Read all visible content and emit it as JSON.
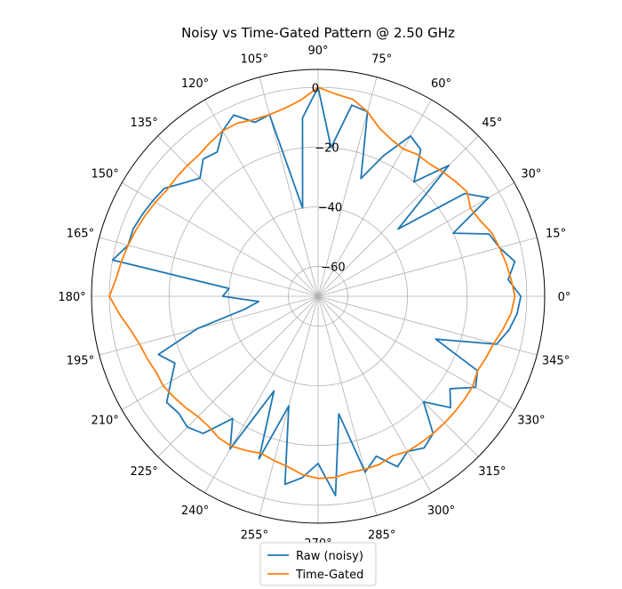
{
  "chart_data": {
    "type": "line",
    "projection": "polar",
    "title": "Noisy vs Time-Gated Pattern @ 2.50 GHz",
    "theta_unit": "degrees",
    "theta_ticks": [
      "0°",
      "15°",
      "30°",
      "45°",
      "60°",
      "75°",
      "90°",
      "105°",
      "120°",
      "135°",
      "150°",
      "165°",
      "180°",
      "195°",
      "210°",
      "225°",
      "240°",
      "255°",
      "270°",
      "285°",
      "300°",
      "315°",
      "330°",
      "345°"
    ],
    "r_ticks": [
      "0",
      "−20",
      "−40",
      "−60"
    ],
    "r_tick_values": [
      0,
      -20,
      -40,
      -60
    ],
    "rlim": [
      -70,
      6
    ],
    "grid": true,
    "legend_position": "bottom-center",
    "series": [
      {
        "name": "Raw (noisy)",
        "color": "#1f77b4",
        "theta": [
          0,
          5,
          10,
          15,
          20,
          25,
          30,
          35,
          40,
          45,
          50,
          55,
          60,
          65,
          70,
          75,
          80,
          85,
          90,
          95,
          100,
          105,
          110,
          115,
          120,
          125,
          130,
          135,
          140,
          145,
          150,
          155,
          160,
          165,
          170,
          175,
          180,
          185,
          190,
          195,
          200,
          205,
          210,
          215,
          220,
          225,
          230,
          235,
          240,
          245,
          250,
          255,
          260,
          265,
          270,
          275,
          280,
          285,
          290,
          295,
          300,
          305,
          310,
          315,
          320,
          325,
          330,
          335,
          340,
          345,
          350,
          355
        ],
        "r": [
          -2,
          -6,
          -3,
          -7,
          -9,
          -20,
          -4,
          -10,
          -35,
          -8,
          -20,
          -10,
          -8,
          -18,
          -28,
          -6,
          -5,
          -20,
          0,
          -10,
          -40,
          -7,
          -8,
          -3,
          -6,
          -11,
          -10,
          -14,
          -11,
          -7,
          -6,
          -5,
          -4,
          -4,
          0,
          -40,
          -38,
          -50,
          -45,
          -28,
          -13,
          -17,
          -13,
          -8,
          -9,
          -8,
          -10,
          -20,
          -11,
          -35,
          -12,
          -32,
          -6,
          -9,
          -14,
          -3,
          -30,
          -9,
          -13,
          -7,
          -10,
          -8,
          -10,
          -20,
          -12,
          -16,
          -9,
          -11,
          -28,
          -8,
          -5,
          -3
        ]
      },
      {
        "name": "Time-Gated",
        "color": "#ff7f0e",
        "theta": [
          0,
          5,
          10,
          15,
          20,
          25,
          30,
          35,
          40,
          45,
          50,
          55,
          60,
          65,
          70,
          75,
          80,
          85,
          90,
          95,
          100,
          105,
          110,
          115,
          120,
          125,
          130,
          135,
          140,
          145,
          150,
          155,
          160,
          165,
          170,
          175,
          180,
          185,
          190,
          195,
          200,
          205,
          210,
          215,
          220,
          225,
          230,
          235,
          240,
          245,
          250,
          255,
          260,
          265,
          270,
          275,
          280,
          285,
          290,
          295,
          300,
          305,
          310,
          315,
          320,
          325,
          330,
          335,
          340,
          345,
          350,
          355
        ],
        "r": [
          -4,
          -5,
          -6,
          -7,
          -8,
          -10,
          -11,
          -9,
          -10,
          -11,
          -12,
          -12,
          -13,
          -12,
          -10,
          -6,
          -3,
          -2,
          0,
          -4,
          -6,
          -7,
          -7,
          -6,
          -6,
          -7,
          -8,
          -8,
          -8,
          -8,
          -7,
          -6,
          -5,
          -4,
          -3,
          -2,
          0,
          -3,
          -6,
          -8,
          -9,
          -10,
          -10,
          -11,
          -12,
          -13,
          -13,
          -12,
          -12,
          -13,
          -14,
          -13,
          -12,
          -10,
          -9,
          -9,
          -10,
          -10,
          -10,
          -11,
          -10,
          -10,
          -10,
          -10,
          -10,
          -10,
          -10,
          -11,
          -10,
          -9,
          -7,
          -5
        ]
      }
    ]
  }
}
